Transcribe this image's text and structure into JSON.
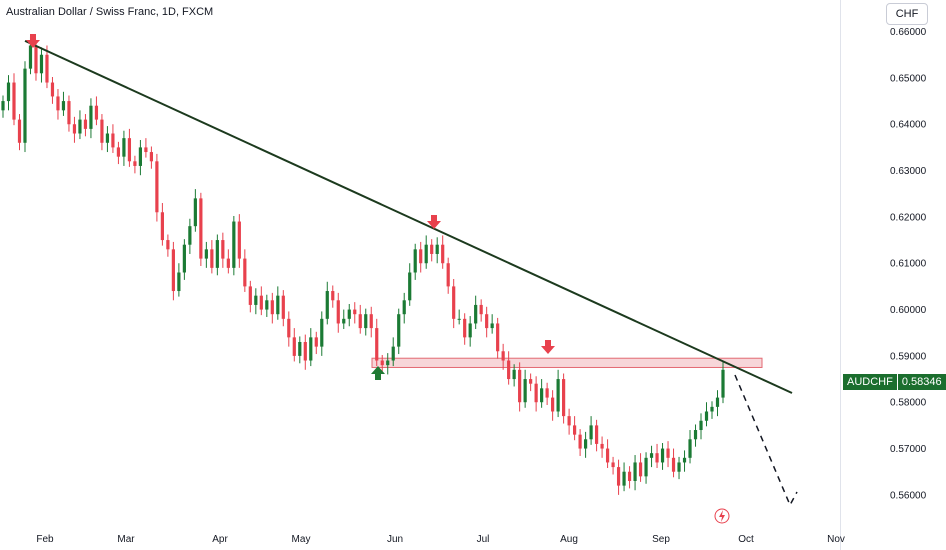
{
  "header": {
    "title": "Australian Dollar / Swiss Franc, 1D, FXCM",
    "currency_button": "CHF"
  },
  "price_tag": {
    "symbol": "AUDCHF",
    "value": "0.58346"
  },
  "colors": {
    "up": "#1b7a34",
    "down": "#e8414d",
    "trendline": "#1c3a1e",
    "zone_fill": "#f7d6d9",
    "zone_border": "#e36a73",
    "arrow_down": "#e8414d",
    "arrow_up": "#1f7a33",
    "dashed": "#131722"
  },
  "chart_data": {
    "type": "candlestick",
    "title": "Australian Dollar / Swiss Franc, 1D, FXCM",
    "x_axis_labels": [
      "Feb",
      "Mar",
      "Apr",
      "May",
      "Jun",
      "Jul",
      "Aug",
      "Sep",
      "Oct",
      "Nov"
    ],
    "y_axis_labels": [
      "0.66000",
      "0.65000",
      "0.64000",
      "0.63000",
      "0.62000",
      "0.61000",
      "0.60000",
      "0.59000",
      "0.58000",
      "0.57000",
      "0.56000"
    ],
    "ylim": [
      0.5535,
      0.6625
    ],
    "last_price": 0.58346,
    "closes": [
      0.645,
      0.649,
      0.641,
      0.636,
      0.652,
      0.657,
      0.651,
      0.655,
      0.649,
      0.646,
      0.643,
      0.645,
      0.64,
      0.638,
      0.641,
      0.639,
      0.644,
      0.641,
      0.636,
      0.638,
      0.635,
      0.633,
      0.637,
      0.632,
      0.631,
      0.635,
      0.634,
      0.632,
      0.621,
      0.615,
      0.613,
      0.604,
      0.608,
      0.614,
      0.618,
      0.624,
      0.611,
      0.613,
      0.609,
      0.615,
      0.611,
      0.609,
      0.619,
      0.611,
      0.605,
      0.601,
      0.603,
      0.6,
      0.602,
      0.599,
      0.603,
      0.598,
      0.594,
      0.59,
      0.593,
      0.589,
      0.594,
      0.592,
      0.598,
      0.604,
      0.602,
      0.597,
      0.598,
      0.6,
      0.599,
      0.596,
      0.599,
      0.596,
      0.589,
      0.588,
      0.589,
      0.592,
      0.599,
      0.602,
      0.608,
      0.613,
      0.61,
      0.614,
      0.612,
      0.614,
      0.61,
      0.605,
      0.598,
      0.598,
      0.594,
      0.597,
      0.601,
      0.599,
      0.596,
      0.597,
      0.591,
      0.589,
      0.585,
      0.587,
      0.58,
      0.585,
      0.584,
      0.58,
      0.583,
      0.581,
      0.578,
      0.585,
      0.577,
      0.575,
      0.573,
      0.57,
      0.572,
      0.575,
      0.571,
      0.57,
      0.567,
      0.566,
      0.562,
      0.565,
      0.563,
      0.567,
      0.564,
      0.568,
      0.569,
      0.567,
      0.57,
      0.568,
      0.565,
      0.567,
      0.568,
      0.572,
      0.574,
      0.576,
      0.578,
      0.579,
      0.581,
      0.587
    ],
    "trendline": {
      "from": [
        "Feb",
        0.658
      ],
      "to": [
        "Oct",
        0.581
      ]
    },
    "resistance_zone": [
      0.5875,
      0.5895
    ],
    "projection": "down",
    "annotations": [
      "arrow-down",
      "arrow-down",
      "arrow-down",
      "arrow-up"
    ]
  }
}
